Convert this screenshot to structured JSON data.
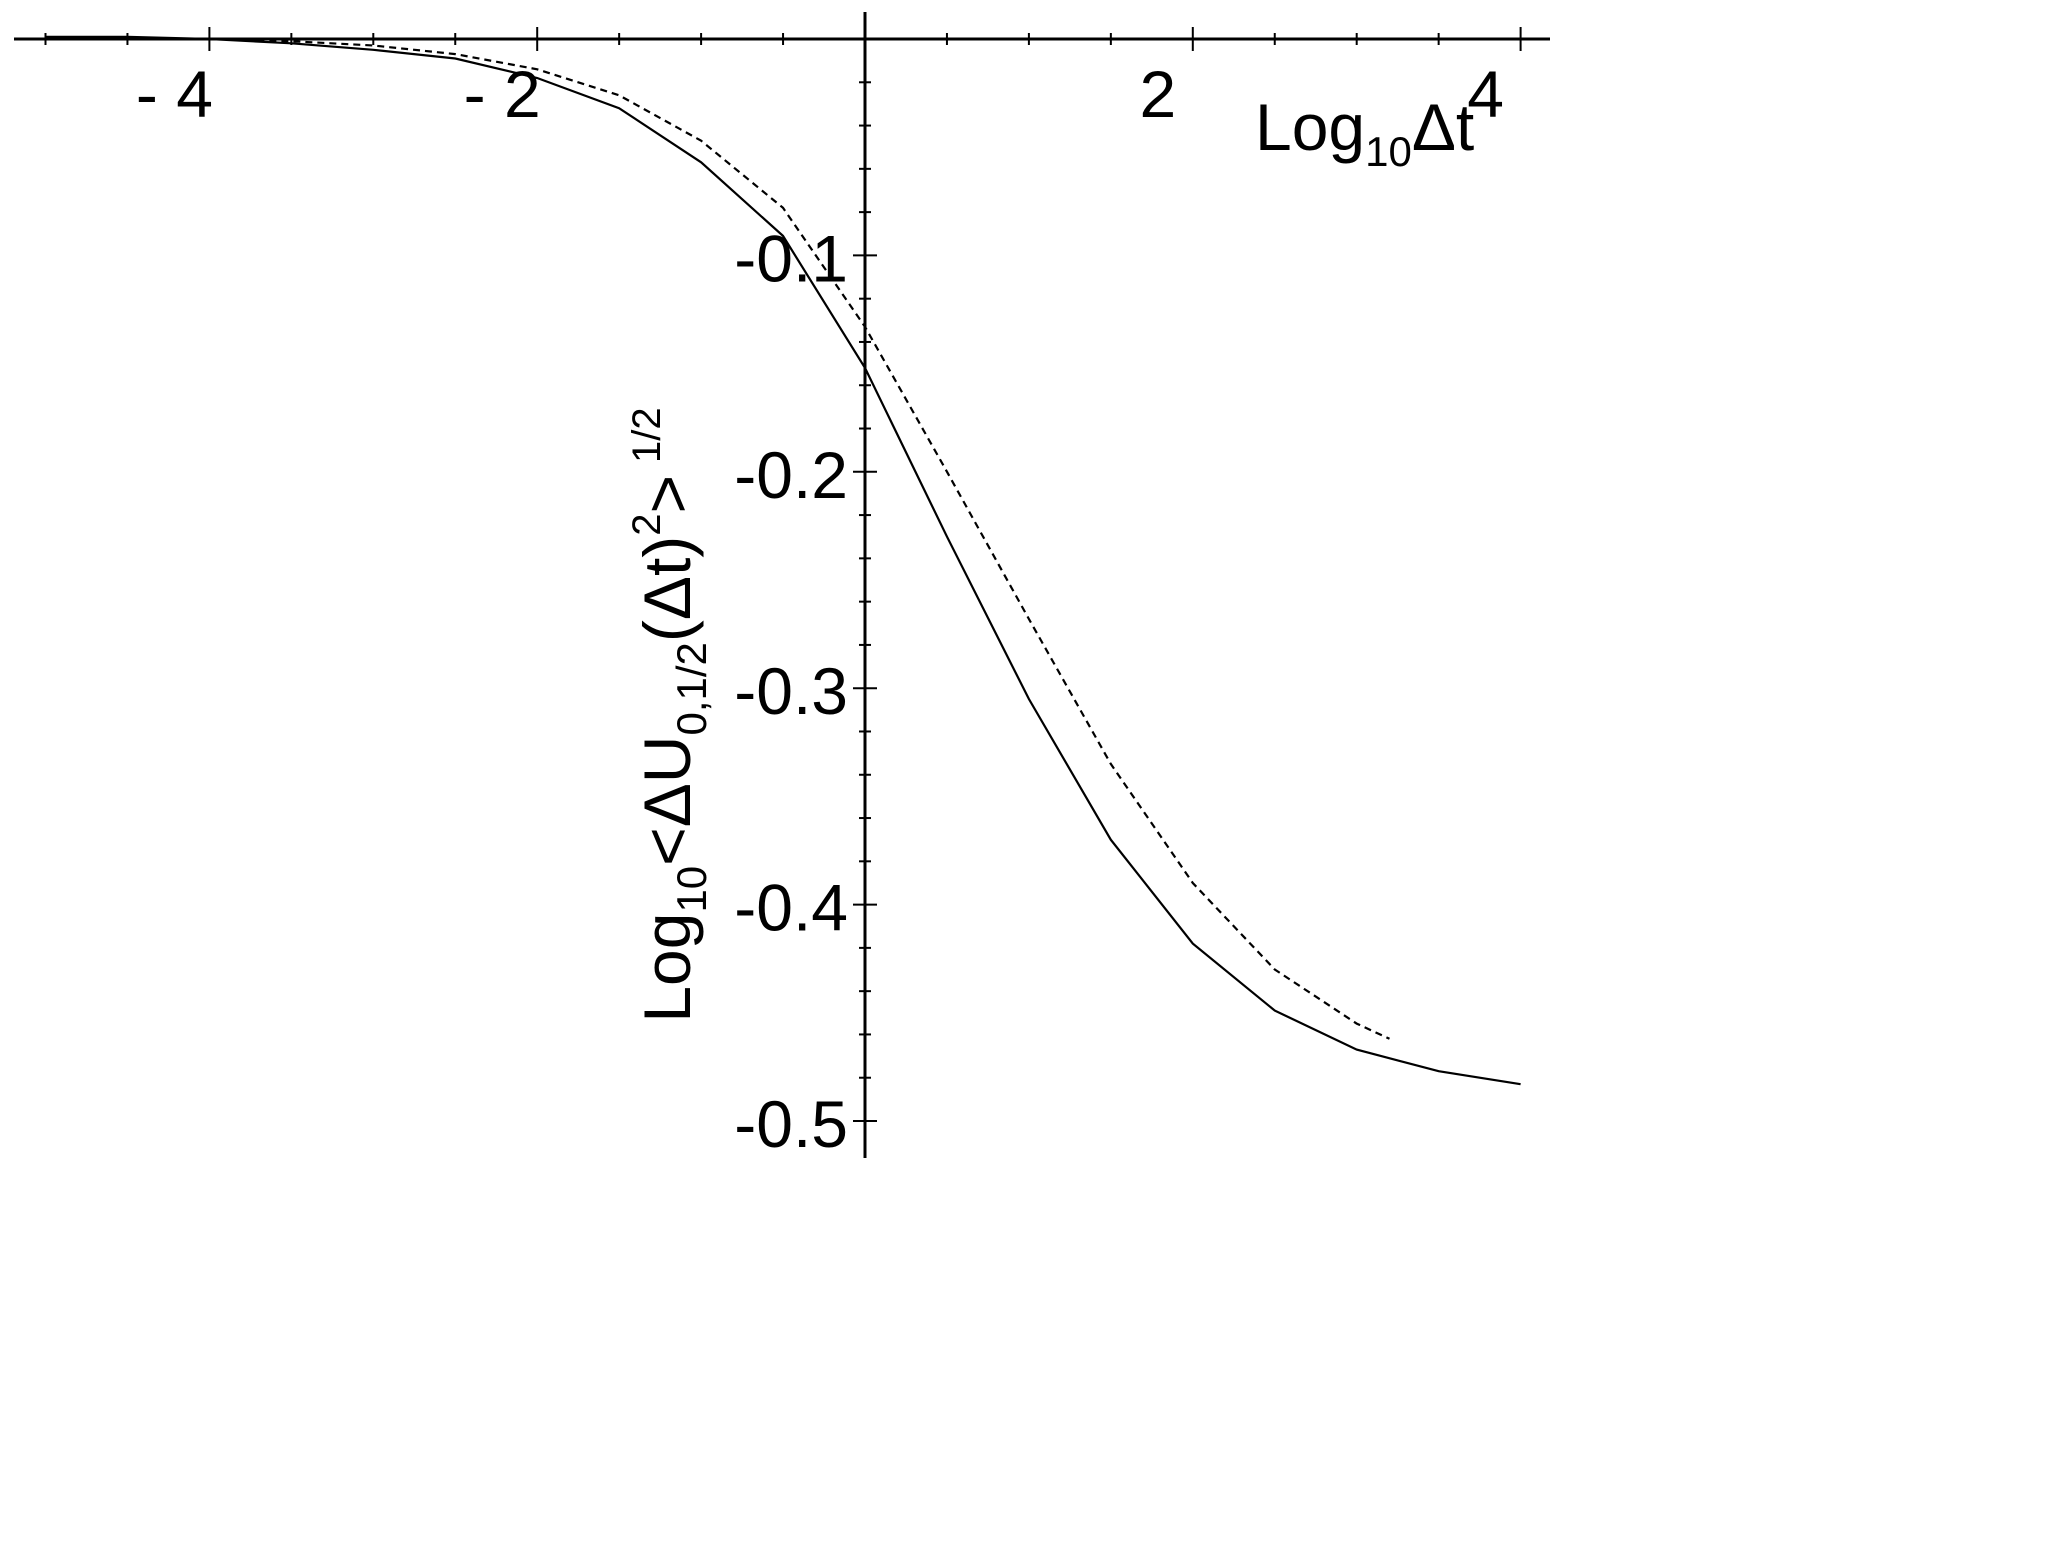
{
  "chart_data": {
    "type": "line",
    "x_axis": {
      "label_main": "Log",
      "label_sub": "10",
      "label_tail": "Δt",
      "range": [
        -5,
        4
      ],
      "major_ticks": [
        -4,
        -2,
        2,
        4
      ],
      "tick_labels": [
        "- 4",
        "- 2",
        "2",
        "4"
      ]
    },
    "y_axis": {
      "label_main": "Log",
      "label_sub": "10",
      "label_mid": "<ΔU",
      "label_sub2": "0,1/2",
      "label_mid2": "(Δt)",
      "label_sup": "2",
      "label_end": ">",
      "label_sup2": "1/2",
      "range": [
        -0.5,
        0
      ],
      "major_ticks": [
        -0.1,
        -0.2,
        -0.3,
        -0.4,
        -0.5
      ],
      "tick_labels": [
        "-0.1",
        "-0.2",
        "-0.3",
        "-0.4",
        "-0.5"
      ]
    },
    "series": [
      {
        "style": "solid",
        "x": [
          -5.0,
          -4.5,
          -4.0,
          -3.5,
          -3.0,
          -2.5,
          -2.0,
          -1.5,
          -1.0,
          -0.5,
          0.0,
          0.5,
          1.0,
          1.5,
          2.0,
          2.5,
          3.0,
          3.5,
          4.0
        ],
        "y": [
          0.001,
          0.001,
          0.0,
          -0.002,
          -0.005,
          -0.009,
          -0.018,
          -0.032,
          -0.057,
          -0.091,
          -0.152,
          -0.23,
          -0.305,
          -0.37,
          -0.418,
          -0.449,
          -0.467,
          -0.477,
          -0.483
        ]
      },
      {
        "style": "dashed",
        "x": [
          -4.0,
          -3.5,
          -3.0,
          -2.5,
          -2.0,
          -1.5,
          -1.0,
          -0.5,
          0.0,
          0.5,
          1.0,
          1.5,
          2.0,
          2.5,
          3.0,
          3.2
        ],
        "y": [
          0.0,
          -0.001,
          -0.003,
          -0.007,
          -0.014,
          -0.026,
          -0.047,
          -0.078,
          -0.133,
          -0.2,
          -0.268,
          -0.335,
          -0.39,
          -0.43,
          -0.455,
          -0.462
        ]
      }
    ]
  }
}
